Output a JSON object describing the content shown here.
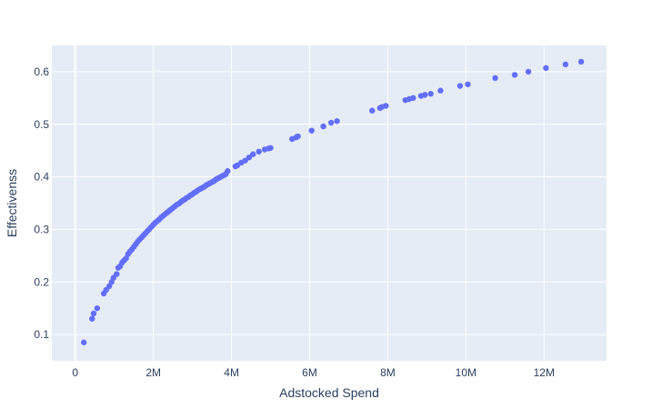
{
  "chart_data": {
    "type": "scatter",
    "title": "",
    "xlabel": "Adstocked Spend",
    "ylabel": "Effectivenss",
    "xlim": [
      -600000,
      13600000
    ],
    "ylim": [
      0.05,
      0.65
    ],
    "grid": true,
    "legend": "none",
    "colors": {
      "marker": "#636efa",
      "plot_bg": "#e5ecf6",
      "text": "#2a3f5f",
      "grid": "#ffffff"
    },
    "x_ticks": [
      {
        "value": 0,
        "label": "0"
      },
      {
        "value": 2000000,
        "label": "2M"
      },
      {
        "value": 4000000,
        "label": "4M"
      },
      {
        "value": 6000000,
        "label": "6M"
      },
      {
        "value": 8000000,
        "label": "8M"
      },
      {
        "value": 10000000,
        "label": "10M"
      },
      {
        "value": 12000000,
        "label": "12M"
      }
    ],
    "y_ticks": [
      {
        "value": 0.1,
        "label": "0.1"
      },
      {
        "value": 0.2,
        "label": "0.2"
      },
      {
        "value": 0.3,
        "label": "0.3"
      },
      {
        "value": 0.4,
        "label": "0.4"
      },
      {
        "value": 0.5,
        "label": "0.5"
      },
      {
        "value": 0.6,
        "label": "0.6"
      }
    ],
    "series": [
      {
        "x": [
          220000,
          430000,
          470000,
          560000,
          730000,
          790000,
          870000,
          930000,
          980000,
          1060000,
          1100000,
          1150000,
          1200000,
          1250000,
          1300000,
          1350000,
          1400000,
          1450000,
          1500000,
          1550000,
          1600000,
          1650000,
          1700000,
          1750000,
          1800000,
          1850000,
          1900000,
          1950000,
          2000000,
          2050000,
          2100000,
          2150000,
          2200000,
          2250000,
          2300000,
          2350000,
          2400000,
          2450000,
          2500000,
          2550000,
          2600000,
          2650000,
          2700000,
          2750000,
          2800000,
          2850000,
          2900000,
          2950000,
          3000000,
          3050000,
          3100000,
          3150000,
          3200000,
          3250000,
          3300000,
          3350000,
          3400000,
          3450000,
          3500000,
          3550000,
          3600000,
          3650000,
          3700000,
          3750000,
          3800000,
          3850000,
          3900000,
          4100000,
          4150000,
          4250000,
          4350000,
          4450000,
          4550000,
          4700000,
          4850000,
          4950000,
          5000000,
          5550000,
          5650000,
          5700000,
          6050000,
          6350000,
          6550000,
          6700000,
          7600000,
          7800000,
          7850000,
          7950000,
          8450000,
          8550000,
          8650000,
          8850000,
          8950000,
          9100000,
          9350000,
          9850000,
          10050000,
          10750000,
          11250000,
          11600000,
          12050000,
          12550000,
          12950000
        ],
        "y": [
          0.085,
          0.13,
          0.14,
          0.15,
          0.178,
          0.185,
          0.192,
          0.2,
          0.208,
          0.215,
          0.227,
          0.23,
          0.237,
          0.241,
          0.245,
          0.253,
          0.258,
          0.262,
          0.267,
          0.272,
          0.277,
          0.281,
          0.285,
          0.289,
          0.293,
          0.297,
          0.301,
          0.305,
          0.309,
          0.313,
          0.316,
          0.319,
          0.323,
          0.326,
          0.329,
          0.332,
          0.335,
          0.338,
          0.341,
          0.344,
          0.347,
          0.349,
          0.352,
          0.355,
          0.357,
          0.36,
          0.362,
          0.365,
          0.367,
          0.37,
          0.372,
          0.375,
          0.377,
          0.379,
          0.381,
          0.384,
          0.386,
          0.388,
          0.39,
          0.392,
          0.395,
          0.397,
          0.399,
          0.401,
          0.403,
          0.405,
          0.411,
          0.42,
          0.422,
          0.427,
          0.431,
          0.437,
          0.443,
          0.448,
          0.452,
          0.454,
          0.455,
          0.472,
          0.475,
          0.477,
          0.488,
          0.496,
          0.503,
          0.506,
          0.526,
          0.531,
          0.533,
          0.535,
          0.546,
          0.548,
          0.55,
          0.554,
          0.556,
          0.558,
          0.564,
          0.573,
          0.576,
          0.588,
          0.594,
          0.6,
          0.607,
          0.614,
          0.619
        ]
      }
    ]
  }
}
